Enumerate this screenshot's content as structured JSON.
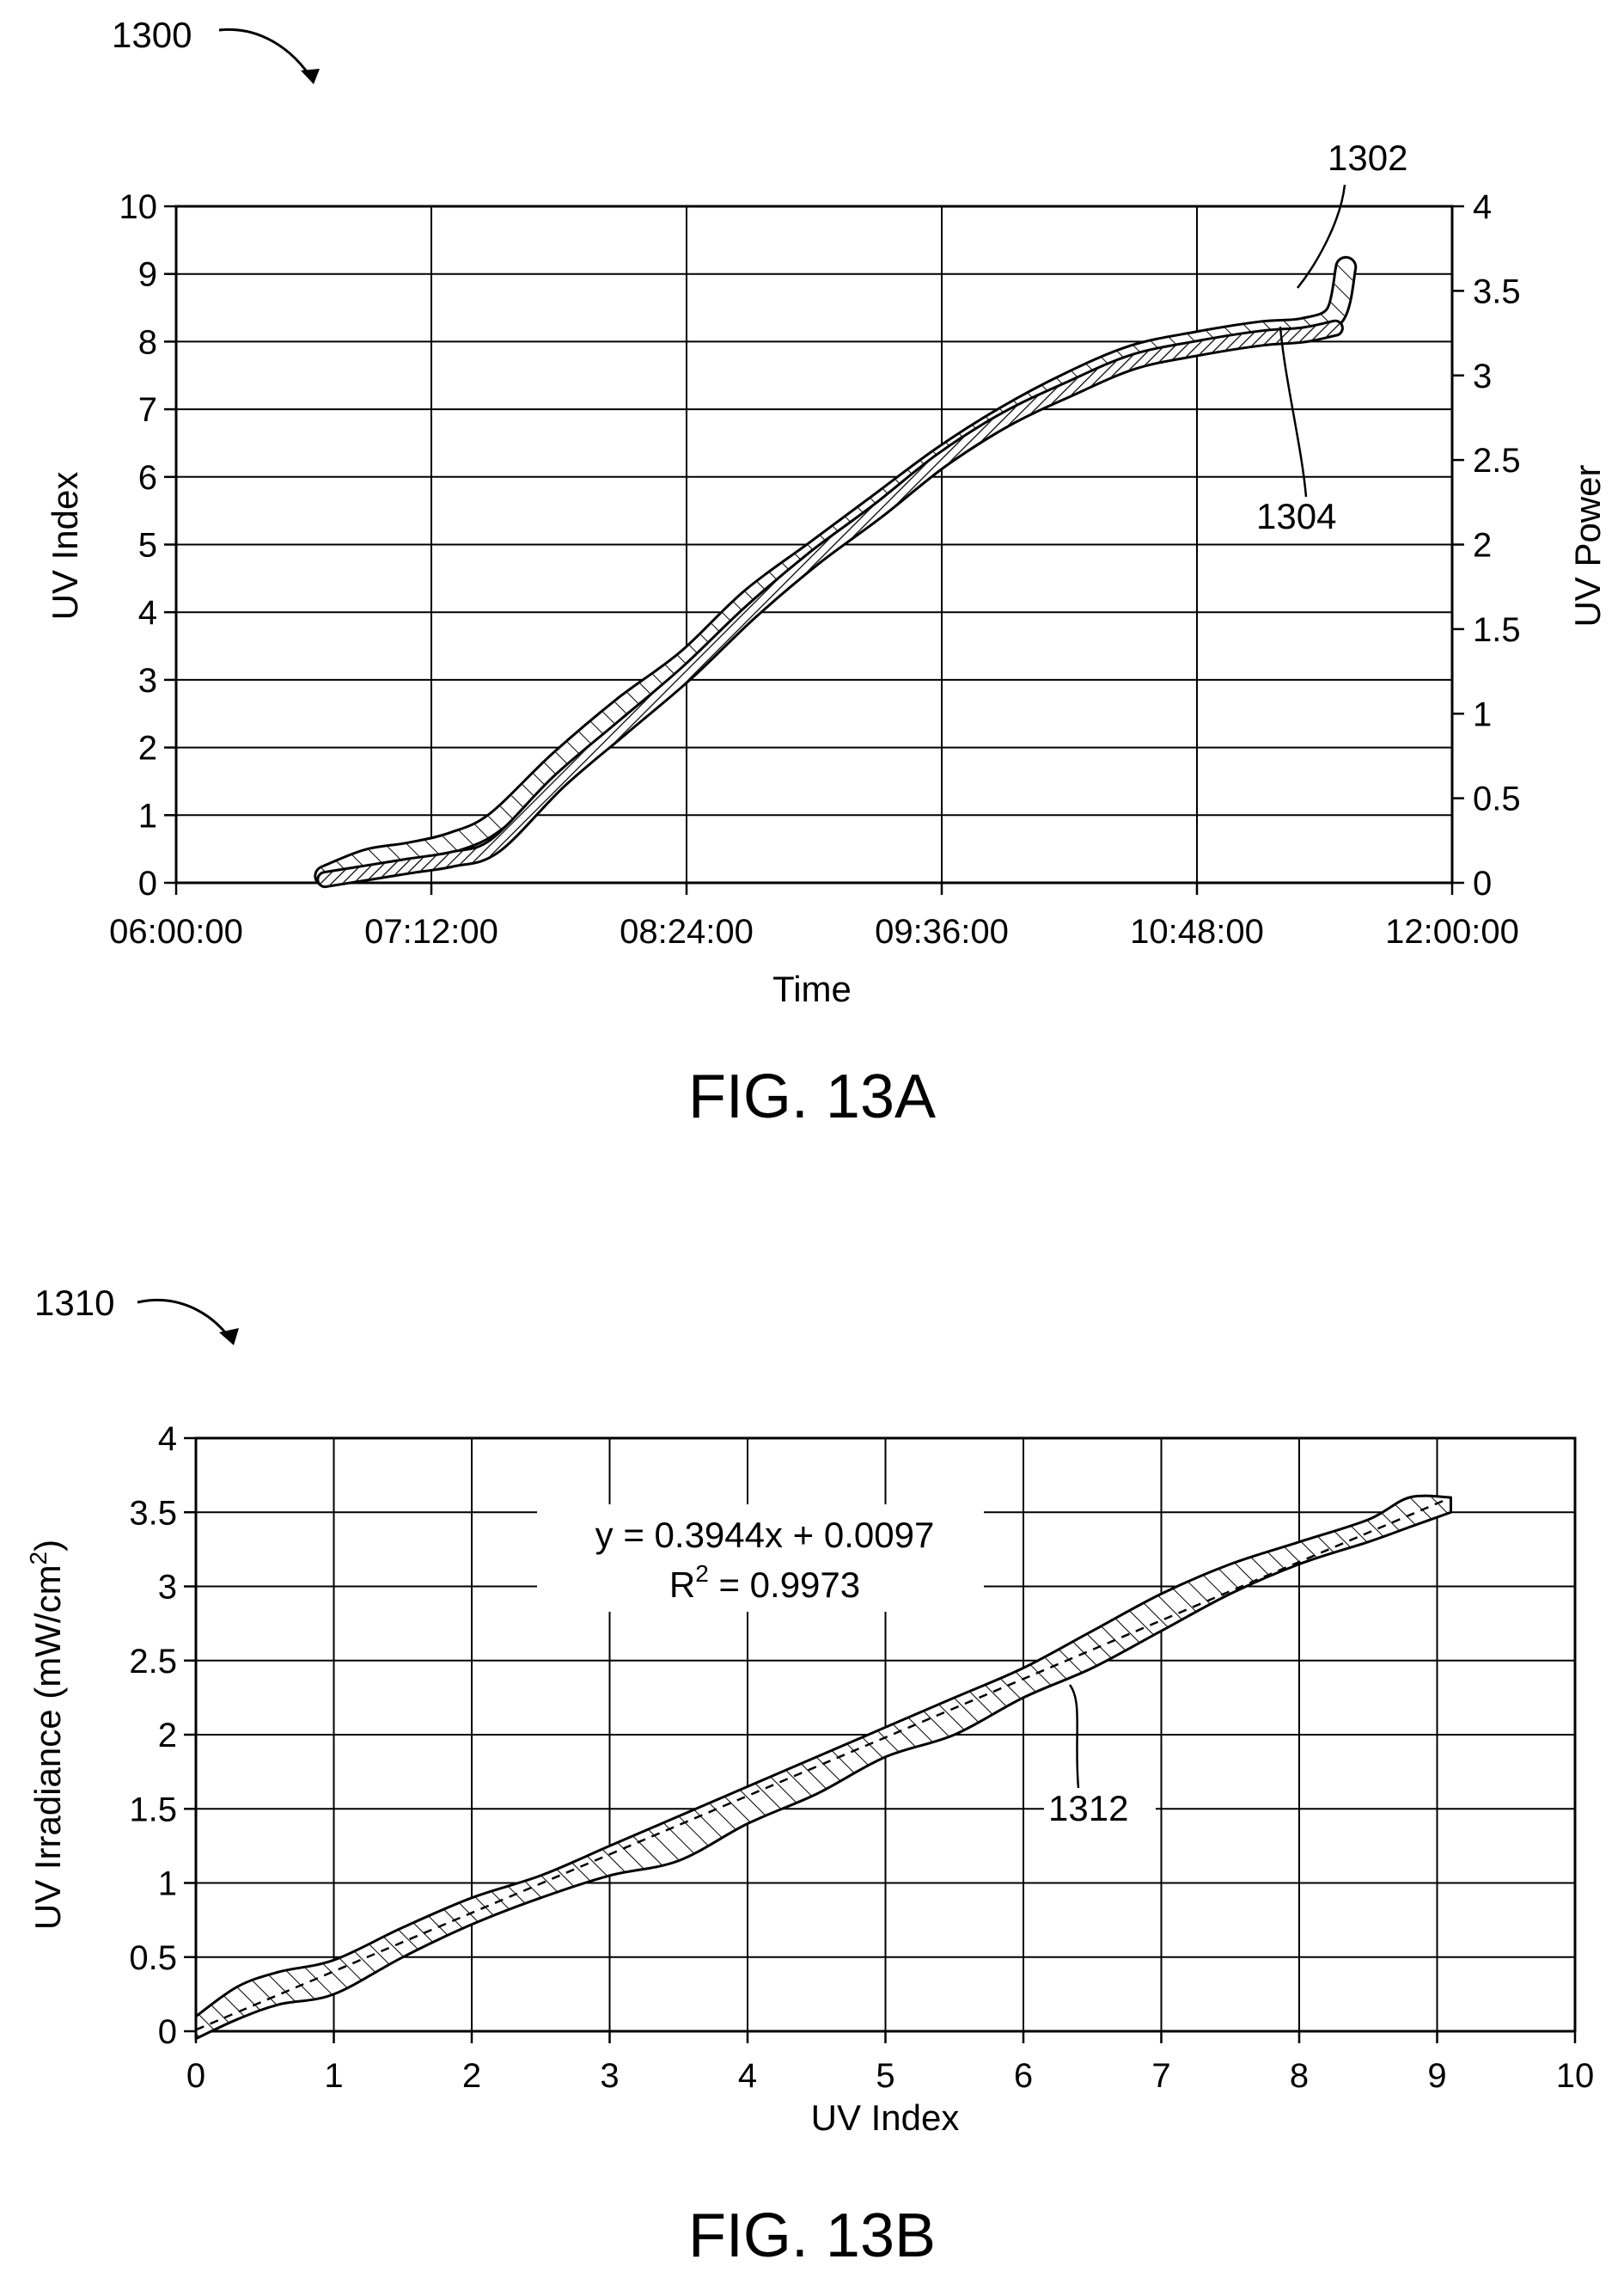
{
  "figure_13a": {
    "caption": "FIG. 13A",
    "ref_figure": "1300",
    "ref_series_a": "1302",
    "ref_series_b": "1304"
  },
  "figure_13b": {
    "caption": "FIG. 13B",
    "ref_figure": "1310",
    "ref_band": "1312",
    "equation": "y = 0.3944x + 0.0097",
    "r2_prefix": "R",
    "r2_sup": "2",
    "r2_value": " = 0.9973"
  },
  "colors": {
    "ink": "#000000",
    "background": "#ffffff"
  },
  "chart_data": [
    {
      "type": "line",
      "xlabel": "Time",
      "ylabel": "UV Index",
      "y2label": "UV Power",
      "xticks": [
        "06:00:00",
        "07:12:00",
        "08:24:00",
        "09:36:00",
        "10:48:00",
        "12:00:00"
      ],
      "ylim": [
        0,
        10
      ],
      "y2lim": [
        0,
        4
      ],
      "yticks": [
        "0",
        "1",
        "2",
        "3",
        "4",
        "5",
        "6",
        "7",
        "8",
        "9",
        "10"
      ],
      "y2ticks": [
        "0",
        "0.5",
        "1",
        "1.5",
        "2",
        "2.5",
        "3",
        "3.5",
        "4"
      ],
      "grid": true,
      "series": [
        {
          "x_hours": [
            6.7,
            6.9,
            7.1,
            7.3,
            7.5,
            7.8,
            8.1,
            8.4,
            8.7,
            9.0,
            9.3,
            9.6,
            9.9,
            10.2,
            10.5,
            10.8,
            11.1,
            11.3,
            11.45,
            11.5
          ],
          "y": [
            0.1,
            0.35,
            0.45,
            0.6,
            0.9,
            1.8,
            2.6,
            3.3,
            4.2,
            4.9,
            5.6,
            6.3,
            6.9,
            7.4,
            7.8,
            8.0,
            8.15,
            8.2,
            8.4,
            9.1
          ]
        },
        {
          "x_hours": [
            6.7,
            6.9,
            7.1,
            7.3,
            7.5,
            7.8,
            8.1,
            8.4,
            8.7,
            9.0,
            9.3,
            9.6,
            9.9,
            10.2,
            10.5,
            10.8,
            11.1,
            11.3,
            11.45
          ],
          "y": [
            0.05,
            0.15,
            0.25,
            0.35,
            0.55,
            1.5,
            2.3,
            3.1,
            4.0,
            4.8,
            5.5,
            6.25,
            6.85,
            7.3,
            7.7,
            7.9,
            8.05,
            8.1,
            8.2
          ]
        }
      ]
    },
    {
      "type": "scatter",
      "xlabel": "UV Index",
      "ylabel_prefix": "UV Irradiance (mW/cm",
      "ylabel_sup": "2",
      "ylabel_suffix": ")",
      "xlim": [
        0,
        10
      ],
      "ylim": [
        0,
        4
      ],
      "xticks": [
        "0",
        "1",
        "2",
        "3",
        "4",
        "5",
        "6",
        "7",
        "8",
        "9",
        "10"
      ],
      "yticks": [
        "0",
        "0.5",
        "1",
        "1.5",
        "2",
        "2.5",
        "3",
        "3.5",
        "4"
      ],
      "grid": true,
      "trendline": {
        "slope": 0.3944,
        "intercept": 0.0097
      },
      "band_upper": {
        "x": [
          0,
          0.3,
          0.6,
          1.0,
          1.5,
          2.0,
          2.5,
          3.0,
          3.5,
          4.0,
          4.5,
          5.0,
          5.5,
          6.0,
          6.5,
          7.0,
          7.5,
          8.0,
          8.5,
          8.8,
          9.1
        ],
        "y": [
          0.1,
          0.3,
          0.4,
          0.48,
          0.7,
          0.9,
          1.05,
          1.25,
          1.45,
          1.65,
          1.85,
          2.05,
          2.25,
          2.45,
          2.7,
          2.95,
          3.15,
          3.3,
          3.45,
          3.6,
          3.6
        ]
      },
      "band_lower": {
        "x": [
          0,
          0.3,
          0.6,
          1.0,
          1.5,
          2.0,
          2.5,
          3.0,
          3.5,
          4.0,
          4.5,
          5.0,
          5.5,
          6.0,
          6.5,
          7.0,
          7.5,
          8.0,
          8.5,
          8.8,
          9.1
        ],
        "y": [
          -0.05,
          0.08,
          0.18,
          0.25,
          0.5,
          0.72,
          0.9,
          1.05,
          1.15,
          1.4,
          1.6,
          1.85,
          2.0,
          2.25,
          2.45,
          2.7,
          2.95,
          3.15,
          3.3,
          3.4,
          3.5
        ]
      }
    }
  ]
}
